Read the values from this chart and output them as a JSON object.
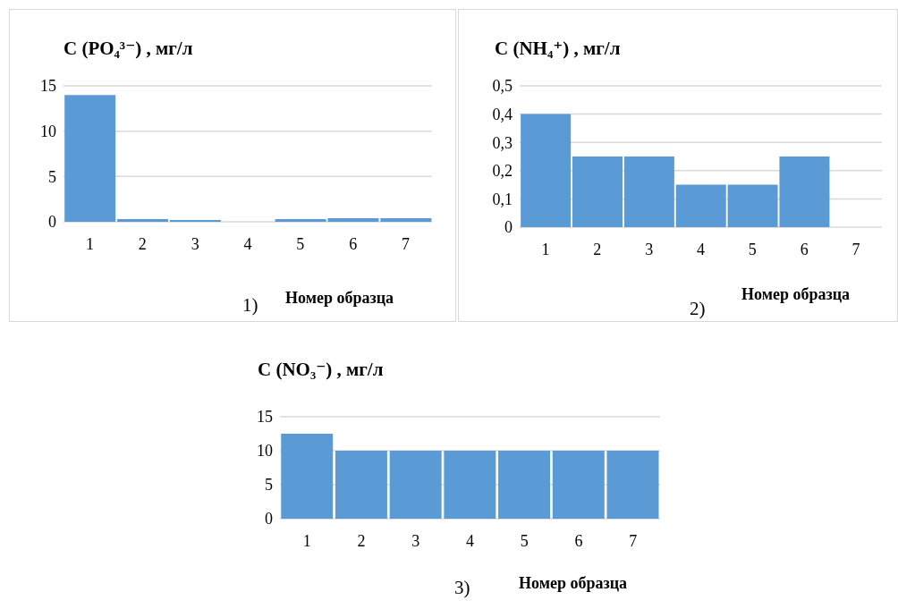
{
  "chart_data": [
    {
      "type": "bar",
      "title": "C (PO₄³⁻) , мг/л",
      "xlabel": "Номер образца",
      "annotations": [
        "1)"
      ],
      "categories": [
        "1",
        "2",
        "3",
        "4",
        "5",
        "6",
        "7"
      ],
      "values": [
        14,
        0.3,
        0.2,
        0,
        0.3,
        0.4,
        0.4
      ],
      "color": "#5b9bd5",
      "ylim": [
        0,
        15
      ],
      "yticks": [
        0,
        5,
        10,
        15
      ],
      "grid": "y"
    },
    {
      "type": "bar",
      "title": "C (NH₄⁺) , мг/л",
      "xlabel": "Номер образца",
      "annotations": [
        "2)"
      ],
      "categories": [
        "1",
        "2",
        "3",
        "4",
        "5",
        "6",
        "7"
      ],
      "values": [
        0.4,
        0.25,
        0.25,
        0.15,
        0.15,
        0.25,
        0
      ],
      "color": "#5b9bd5",
      "ylim": [
        0,
        0.5
      ],
      "yticks": [
        0,
        {
          "value": 0.1,
          "label": "0,1"
        },
        {
          "value": 0.2,
          "label": "0,2"
        },
        {
          "value": 0.3,
          "label": "0,3"
        },
        {
          "value": 0.4,
          "label": "0,4"
        },
        {
          "value": 0.5,
          "label": "0,5"
        }
      ],
      "grid": "y"
    },
    {
      "type": "bar",
      "title": "C (NO₃⁻) , мг/л",
      "xlabel": "Номер образца",
      "annotations": [
        "3)"
      ],
      "categories": [
        "1",
        "2",
        "3",
        "4",
        "5",
        "6",
        "7"
      ],
      "values": [
        12.5,
        10,
        10,
        10,
        10,
        10,
        10
      ],
      "color": "#5b9bd5",
      "ylim": [
        0,
        15
      ],
      "yticks": [
        0,
        5,
        10,
        15
      ],
      "grid": "y"
    }
  ]
}
